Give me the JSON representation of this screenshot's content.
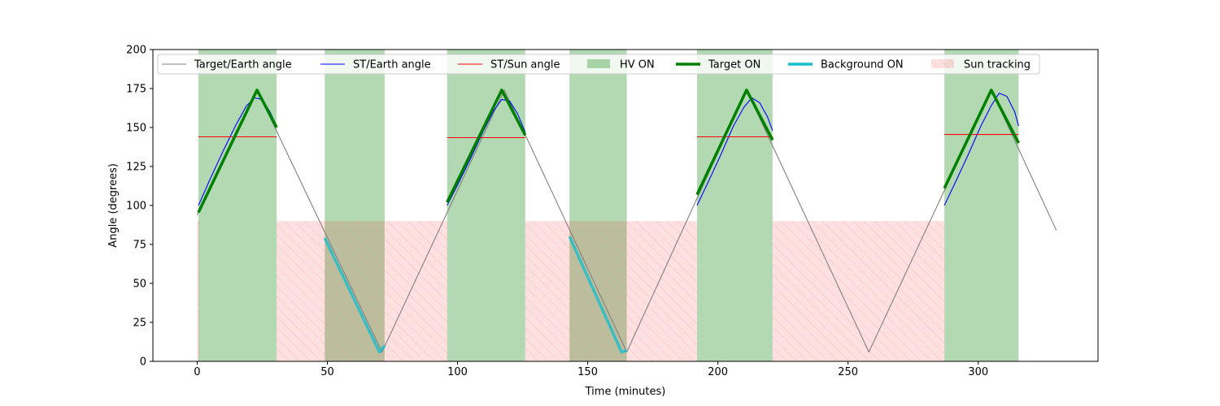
{
  "chart_data": {
    "type": "line",
    "title": "",
    "xlabel": "Time (minutes)",
    "ylabel": "Angle (degrees)",
    "xlim": [
      -17,
      346
    ],
    "ylim": [
      0,
      200
    ],
    "x_ticks": [
      0,
      50,
      100,
      150,
      200,
      250,
      300
    ],
    "y_ticks": [
      0,
      25,
      50,
      75,
      100,
      125,
      150,
      175,
      200
    ],
    "grid": false,
    "legend_placement": "top, spanning width",
    "legend": [
      {
        "label": "Target/Earth angle",
        "kind": "line",
        "color": "#808080",
        "width": 1
      },
      {
        "label": "ST/Earth angle",
        "kind": "line",
        "color": "#0000ff",
        "width": 1
      },
      {
        "label": "ST/Sun angle",
        "kind": "line",
        "color": "#ff0000",
        "width": 1
      },
      {
        "label": "HV ON",
        "kind": "patch",
        "color": "#008000",
        "opacity": 0.3
      },
      {
        "label": "Target ON",
        "kind": "line",
        "color": "#008000",
        "width": 3.5
      },
      {
        "label": "Background ON",
        "kind": "line",
        "color": "#17becf",
        "width": 3.5
      },
      {
        "label": "Sun tracking",
        "kind": "hatch",
        "color": "#ffcccc"
      }
    ],
    "hv_on_intervals": [
      [
        0.5,
        30.5
      ],
      [
        49,
        72
      ],
      [
        96,
        126
      ],
      [
        143,
        165
      ],
      [
        192,
        221
      ],
      [
        287,
        315.5
      ]
    ],
    "sun_tracking": {
      "level": 90,
      "intervals": [
        [
          0,
          0.8
        ],
        [
          30.5,
          96
        ],
        [
          126,
          192
        ],
        [
          221,
          287
        ]
      ]
    },
    "series": [
      {
        "name": "Target/Earth angle",
        "color": "#808080",
        "points": [
          [
            0,
            94
          ],
          [
            23,
            174
          ],
          [
            71,
            6
          ],
          [
            118,
            174
          ],
          [
            165,
            6
          ],
          [
            211,
            174
          ],
          [
            258,
            6
          ],
          [
            305,
            174
          ],
          [
            330,
            84
          ]
        ]
      },
      {
        "name": "ST/Earth angle",
        "color": "#0000ff",
        "segments": [
          [
            [
              0.5,
              100
            ],
            [
              5,
              117
            ],
            [
              10,
              135
            ],
            [
              15,
              152
            ],
            [
              19,
              164
            ],
            [
              22,
              169
            ],
            [
              25,
              168
            ],
            [
              28,
              160
            ],
            [
              30.5,
              151
            ]
          ],
          [
            [
              96,
              100
            ],
            [
              100,
              113
            ],
            [
              105,
              130
            ],
            [
              110,
              148
            ],
            [
              114,
              161
            ],
            [
              117,
              168
            ],
            [
              120,
              167
            ],
            [
              123,
              159
            ],
            [
              126,
              147
            ]
          ],
          [
            [
              192,
              100
            ],
            [
              196,
              114
            ],
            [
              201,
              132
            ],
            [
              206,
              151
            ],
            [
              210,
              163
            ],
            [
              213,
              169
            ],
            [
              216,
              166
            ],
            [
              219,
              157
            ],
            [
              221,
              148
            ]
          ],
          [
            [
              287,
              100
            ],
            [
              291,
              114
            ],
            [
              296,
              132
            ],
            [
              301,
              151
            ],
            [
              305,
              164
            ],
            [
              308,
              172
            ],
            [
              311,
              170
            ],
            [
              314,
              160
            ],
            [
              315.5,
              151
            ]
          ]
        ]
      },
      {
        "name": "ST/Sun angle",
        "color": "#ff0000",
        "segments": [
          [
            [
              0.5,
              144
            ],
            [
              30.5,
              144
            ]
          ],
          [
            [
              96,
              143.5
            ],
            [
              126,
              143.5
            ]
          ],
          [
            [
              192,
              144
            ],
            [
              221,
              144
            ]
          ],
          [
            [
              287,
              145.5
            ],
            [
              315.5,
              145.5
            ]
          ]
        ]
      },
      {
        "name": "Target ON",
        "color": "#008000",
        "segments": [
          [
            [
              0.5,
              95.5
            ],
            [
              23,
              174
            ],
            [
              30.5,
              150
            ]
          ],
          [
            [
              96,
              102
            ],
            [
              117,
              174
            ],
            [
              126,
              145
            ]
          ],
          [
            [
              192,
              107
            ],
            [
              211,
              174
            ],
            [
              221,
              142
            ]
          ],
          [
            [
              287,
              111
            ],
            [
              305,
              174
            ],
            [
              315.5,
              140
            ]
          ]
        ]
      },
      {
        "name": "Background ON",
        "color": "#17becf",
        "segments": [
          [
            [
              49,
              79
            ],
            [
              70,
              6
            ],
            [
              72,
              10
            ]
          ],
          [
            [
              143,
              80
            ],
            [
              163,
              6
            ],
            [
              165,
              7
            ]
          ]
        ]
      }
    ]
  }
}
